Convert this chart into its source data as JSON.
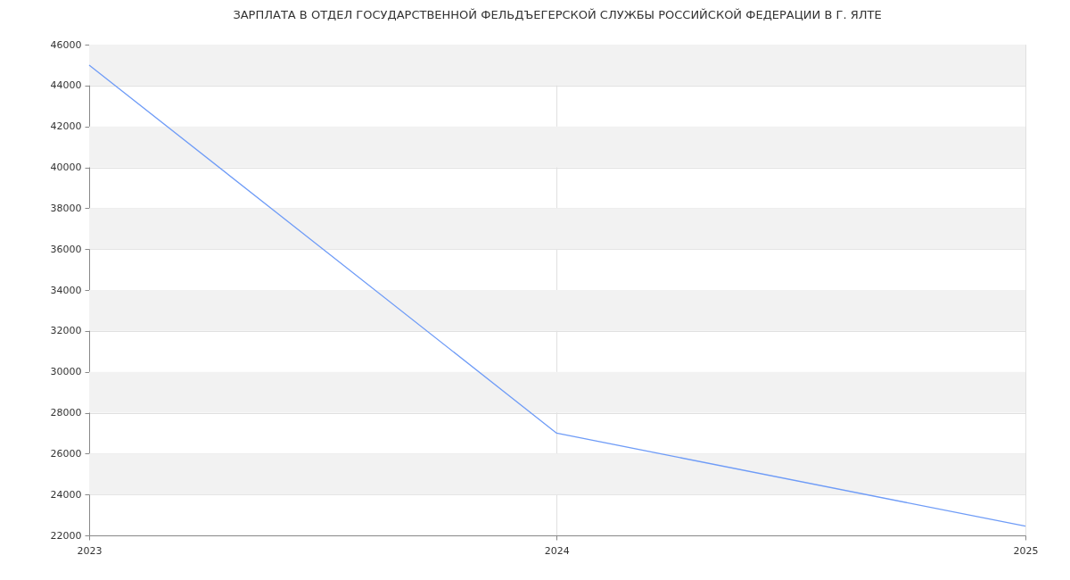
{
  "chart_data": {
    "type": "line",
    "title": "ЗАРПЛАТА В ОТДЕЛ ГОСУДАРСТВЕННОЙ ФЕЛЬДЪЕГЕРСКОЙ СЛУЖБЫ РОССИЙСКОЙ ФЕДЕРАЦИИ В Г. ЯЛТЕ",
    "x": [
      "2023",
      "2024",
      "2025"
    ],
    "series": [
      {
        "color": "#6f9cf7",
        "values": [
          45000,
          27000,
          22450
        ]
      }
    ],
    "xlim": [
      "2023",
      "2025"
    ],
    "xticks": [
      "2023",
      "2024",
      "2025"
    ],
    "ylim": [
      22000,
      46000
    ],
    "yticks": [
      22000,
      24000,
      26000,
      28000,
      30000,
      32000,
      34000,
      36000,
      38000,
      40000,
      42000,
      44000,
      46000
    ],
    "grid": true,
    "marker": "none",
    "line_style": "solid"
  }
}
